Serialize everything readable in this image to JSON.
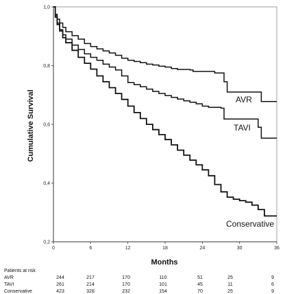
{
  "chart_data": {
    "type": "line",
    "step": true,
    "xlabel": "Months",
    "ylabel": "Cumulative Survival",
    "xlim": [
      0,
      36
    ],
    "ylim": [
      0.2,
      1.0
    ],
    "x_ticks": [
      "0",
      "6",
      "12",
      "18",
      "24",
      "30",
      "36"
    ],
    "y_ticks": [
      "0,2",
      "0,4",
      "0,6",
      "0,8",
      "1,0"
    ],
    "grid": false,
    "series": [
      {
        "name": "AVR",
        "color": "#111111",
        "points": [
          [
            0,
            1.0
          ],
          [
            0.3,
            0.975
          ],
          [
            0.6,
            0.958
          ],
          [
            1,
            0.945
          ],
          [
            1.5,
            0.93
          ],
          [
            2,
            0.915
          ],
          [
            3,
            0.902
          ],
          [
            4,
            0.89
          ],
          [
            5,
            0.875
          ],
          [
            6,
            0.865
          ],
          [
            7,
            0.857
          ],
          [
            8,
            0.85
          ],
          [
            9,
            0.843
          ],
          [
            10,
            0.835
          ],
          [
            11,
            0.825
          ],
          [
            12,
            0.818
          ],
          [
            13,
            0.814
          ],
          [
            14,
            0.81
          ],
          [
            15,
            0.805
          ],
          [
            16,
            0.802
          ],
          [
            17,
            0.798
          ],
          [
            18,
            0.795
          ],
          [
            19,
            0.79
          ],
          [
            20,
            0.787
          ],
          [
            21,
            0.787
          ],
          [
            22,
            0.785
          ],
          [
            22.5,
            0.78
          ],
          [
            24,
            0.78
          ],
          [
            26,
            0.775
          ],
          [
            27,
            0.775
          ],
          [
            27.5,
            0.745
          ],
          [
            28,
            0.71
          ],
          [
            33,
            0.71
          ],
          [
            33.5,
            0.678
          ],
          [
            36,
            0.678
          ]
        ]
      },
      {
        "name": "TAVI",
        "color": "#111111",
        "points": [
          [
            0,
            1.0
          ],
          [
            0.3,
            0.97
          ],
          [
            0.6,
            0.945
          ],
          [
            1,
            0.922
          ],
          [
            1.5,
            0.905
          ],
          [
            2,
            0.89
          ],
          [
            3,
            0.87
          ],
          [
            4,
            0.855
          ],
          [
            5,
            0.84
          ],
          [
            6,
            0.828
          ],
          [
            7,
            0.818
          ],
          [
            8,
            0.805
          ],
          [
            9,
            0.795
          ],
          [
            10,
            0.785
          ],
          [
            11,
            0.765
          ],
          [
            12,
            0.742
          ],
          [
            13,
            0.735
          ],
          [
            14,
            0.728
          ],
          [
            15,
            0.72
          ],
          [
            16,
            0.712
          ],
          [
            17,
            0.705
          ],
          [
            18,
            0.698
          ],
          [
            19,
            0.692
          ],
          [
            20,
            0.686
          ],
          [
            21,
            0.68
          ],
          [
            22,
            0.675
          ],
          [
            23,
            0.67
          ],
          [
            24,
            0.662
          ],
          [
            25,
            0.658
          ],
          [
            27,
            0.655
          ],
          [
            27.5,
            0.618
          ],
          [
            32,
            0.618
          ],
          [
            33,
            0.59
          ],
          [
            33.5,
            0.553
          ],
          [
            36,
            0.553
          ]
        ]
      },
      {
        "name": "Conservative",
        "color": "#111111",
        "points": [
          [
            0,
            1.0
          ],
          [
            0.3,
            0.965
          ],
          [
            0.6,
            0.94
          ],
          [
            1,
            0.918
          ],
          [
            1.5,
            0.895
          ],
          [
            2,
            0.878
          ],
          [
            3,
            0.852
          ],
          [
            4,
            0.828
          ],
          [
            5,
            0.808
          ],
          [
            6,
            0.788
          ],
          [
            7,
            0.765
          ],
          [
            8,
            0.745
          ],
          [
            9,
            0.725
          ],
          [
            10,
            0.705
          ],
          [
            11,
            0.685
          ],
          [
            12,
            0.662
          ],
          [
            13,
            0.64
          ],
          [
            14,
            0.62
          ],
          [
            15,
            0.6
          ],
          [
            16,
            0.582
          ],
          [
            17,
            0.565
          ],
          [
            18,
            0.548
          ],
          [
            19,
            0.53
          ],
          [
            20,
            0.512
          ],
          [
            21,
            0.495
          ],
          [
            22,
            0.478
          ],
          [
            23,
            0.462
          ],
          [
            24,
            0.445
          ],
          [
            25,
            0.425
          ],
          [
            26,
            0.395
          ],
          [
            27,
            0.37
          ],
          [
            28,
            0.352
          ],
          [
            29,
            0.345
          ],
          [
            30,
            0.34
          ],
          [
            31,
            0.335
          ],
          [
            32,
            0.325
          ],
          [
            33,
            0.31
          ],
          [
            34,
            0.288
          ],
          [
            36,
            0.288
          ]
        ]
      }
    ]
  },
  "risk_table": {
    "title": "Patients at risk",
    "rows": [
      {
        "label": "AVR",
        "values": [
          "244",
          "217",
          "170",
          "110",
          "51",
          "25",
          "9"
        ]
      },
      {
        "label": "TAVI",
        "values": [
          "261",
          "214",
          "170",
          "101",
          "45",
          "11",
          "6"
        ]
      },
      {
        "label": "Conservative",
        "values": [
          "423",
          "328",
          "232",
          "154",
          "70",
          "25",
          "9"
        ]
      }
    ]
  }
}
